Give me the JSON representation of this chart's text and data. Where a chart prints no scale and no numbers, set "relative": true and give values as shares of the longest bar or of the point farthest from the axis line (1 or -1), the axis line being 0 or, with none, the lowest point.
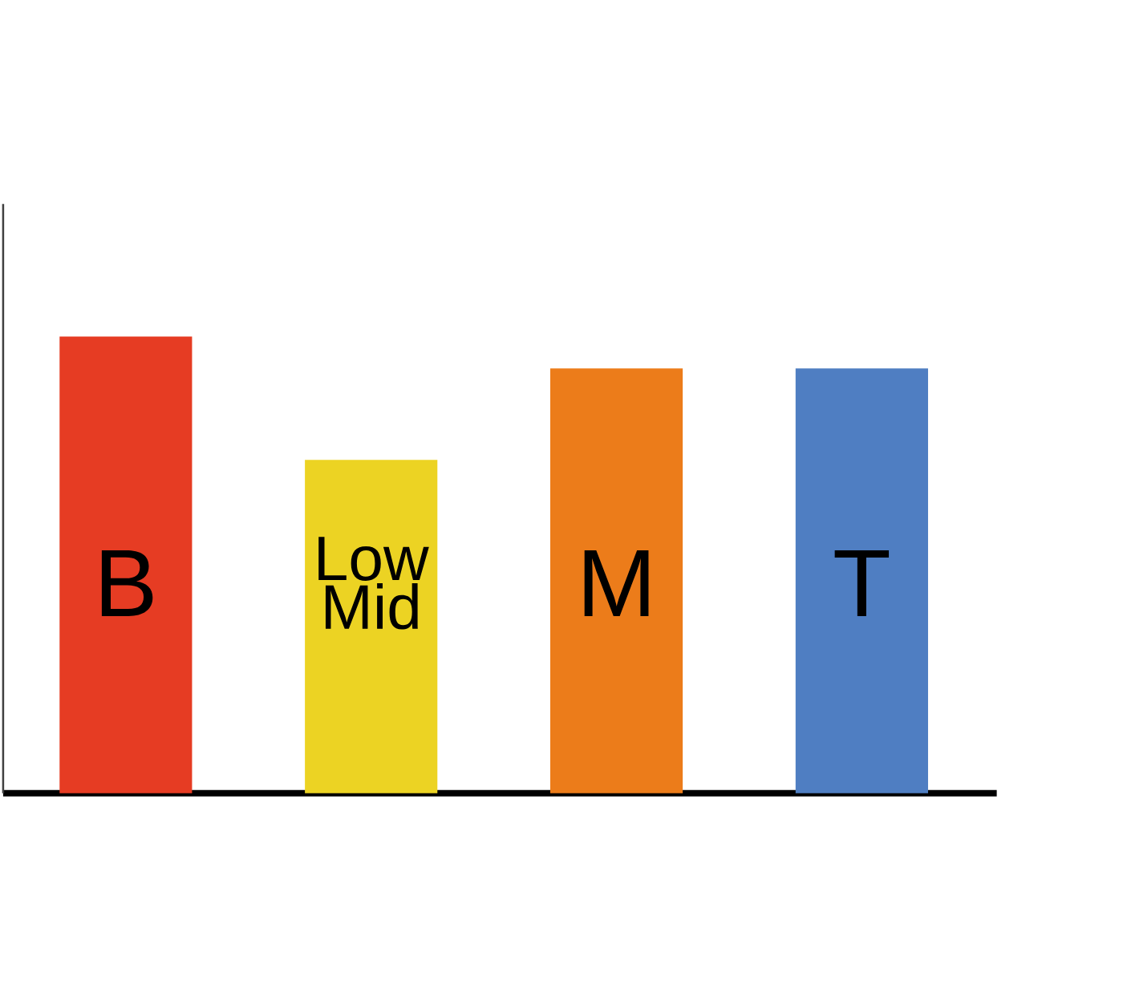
{
  "chart_data": {
    "type": "bar",
    "relative": true,
    "categories": [
      "B",
      "Low Mid",
      "M",
      "T"
    ],
    "values": [
      1,
      0.73,
      0.93,
      0.93
    ],
    "colors": [
      "#e63c23",
      "#ecd323",
      "#ec7c1a",
      "#4f7ec2"
    ]
  }
}
